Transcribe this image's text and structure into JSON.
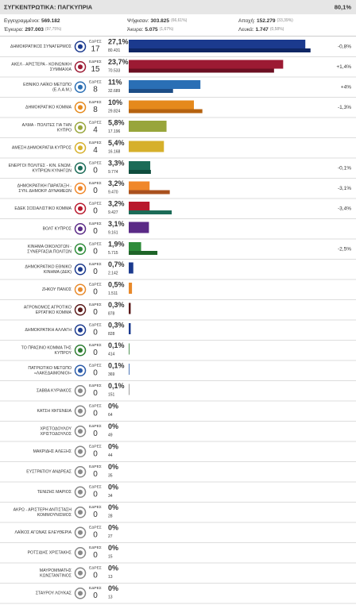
{
  "header": {
    "title": "ΣΥΓΚΕΝΤΡΩΤΙΚΑ: ΠΑΓΚΥΠΡΙΑ",
    "counted": "80,1%"
  },
  "summary": [
    {
      "label": "Εγγεγραμμένοι:",
      "value": "569.182"
    },
    {
      "label": "Ψήφισαν:",
      "value": "303.825",
      "pct": "(66,61%)"
    },
    {
      "label": "Αποχή:",
      "value": "152.279",
      "pct": "(33,39%)"
    },
    {
      "label": "Έγκυρα:",
      "value": "297.003",
      "pct": "(97,75%)"
    },
    {
      "label": "Άκυρα:",
      "value": "5.075",
      "pct": "(1,67%)"
    },
    {
      "label": "Λευκά:",
      "value": "1.747",
      "pct": "(0,58%)"
    }
  ],
  "seats_label": "ΕΔΡΕΣ",
  "rows": [
    {
      "name": [
        "ΔΗΜΟΚΡΑΤΙΚΟΣ ΣΥΝΑΓΕΡΜΟΣ"
      ],
      "seats": "17",
      "pct": 27.1,
      "pct_label": "27,1%",
      "votes": "80.431",
      "change": "-0,8%",
      "prev": 27.9,
      "color": "#1b3a8e",
      "prev_color": "#0f2664"
    },
    {
      "name": [
        "ΑΚΕΛ - ΑΡΙΣΤΕΡΑ - ΚΟΙΝΩΝΙΚΗ",
        "ΣΥΜΜΑΧΙΑ"
      ],
      "seats": "15",
      "pct": 23.7,
      "pct_label": "23,7%",
      "votes": "70.533",
      "change": "+1,4%",
      "prev": 22.3,
      "color": "#9c1a33",
      "prev_color": "#6b0f22"
    },
    {
      "name": [
        "ΕΘΝΙΚΟ ΛΑΪΚΟ ΜΕΤΩΠΟ",
        "(Ε.Λ.Α.Μ.)"
      ],
      "seats": "8",
      "pct": 11,
      "pct_label": "11%",
      "votes": "32.689",
      "change": "+4%",
      "prev": 6.8,
      "color": "#2a6fb5",
      "prev_color": "#1d4d86"
    },
    {
      "name": [
        "ΔΗΜΟΚΡΑΤΙΚΟ ΚΟΜΜΑ"
      ],
      "seats": "8",
      "pct": 10,
      "pct_label": "10%",
      "votes": "29.824",
      "change": "-1,3%",
      "prev": 11.3,
      "color": "#e5891c",
      "prev_color": "#b5620f"
    },
    {
      "name": [
        "ΑΛΜΑ - ΠΟΛΙΤΕΣ ΓΙΑ ΤΗΝ",
        "ΚΥΠΡΟ"
      ],
      "seats": "4",
      "pct": 5.8,
      "pct_label": "5,8%",
      "votes": "17.196",
      "color": "#98a53b"
    },
    {
      "name": [
        "ΑΜΕΣΗ ΔΗΜΟΚΡΑΤΙΑ ΚΥΠΡΟΣ"
      ],
      "seats": "4",
      "pct": 5.4,
      "pct_label": "5,4%",
      "votes": "16.168",
      "color": "#d6b02b"
    },
    {
      "name": [
        "ΕΝΕΡΓΟΙ ΠΟΛΙΤΕΣ - ΚΙΝ. ΕΝΩΜ.",
        "ΚΥΠΡΙΩΝ ΚΥΝΗΓΩΝ"
      ],
      "seats": "0",
      "pct": 3.3,
      "pct_label": "3,3%",
      "votes": "9.774",
      "change": "-0,1%",
      "prev": 3.4,
      "color": "#1b6b57",
      "prev_color": "#0e4c3d"
    },
    {
      "name": [
        "ΔΗΜΟΚΡΑΤΙΚΗ ΠΑΡΑΤΑΞΗ -",
        "ΣΥΝ. ΔΗΜΟΚΡ. ΔΥΝΑΜΕΩΝ"
      ],
      "seats": "0",
      "pct": 3.2,
      "pct_label": "3,2%",
      "votes": "9.470",
      "change": "-3,1%",
      "prev": 6.3,
      "color": "#f0872a",
      "prev_color": "#a9501e"
    },
    {
      "name": [
        "ΕΔΕΚ ΣΟΣΙΑΛΙΣΤΙΚΟ ΚΟΜΜΑ"
      ],
      "seats": "0",
      "pct": 3.2,
      "pct_label": "3,2%",
      "votes": "9.427",
      "change": "-3,4%",
      "prev": 6.6,
      "color": "#b8182c",
      "prev_color": "#1b6b57"
    },
    {
      "name": [
        "ΒΟΛΤ ΚΥΠΡΟΣ"
      ],
      "seats": "0",
      "pct": 3.1,
      "pct_label": "3,1%",
      "votes": "9.161",
      "color": "#5a2a86"
    },
    {
      "name": [
        "ΚΙΝΗΜΑ ΟΙΚΟΛΟΓΩΝ -",
        "ΣΥΝΕΡΓΑΣΙΑ ΠΟΛΙΤΩΝ"
      ],
      "seats": "0",
      "pct": 1.9,
      "pct_label": "1,9%",
      "votes": "5.715",
      "change": "-2,5%",
      "prev": 4.4,
      "color": "#2e8b3a",
      "prev_color": "#1e6428"
    },
    {
      "name": [
        "ΔΗΜΟΚΡΑΤΙΚΟ ΕΘΝΙΚΟ",
        "ΚΙΝΗΜΑ (ΔΕΚ)"
      ],
      "seats": "0",
      "pct": 0.7,
      "pct_label": "0,7%",
      "votes": "2.142",
      "color": "#1b3a8e"
    },
    {
      "name": [
        "ΖΗΚΟΥ ΠΑΝΟΣ"
      ],
      "seats": "0",
      "pct": 0.5,
      "pct_label": "0,5%",
      "votes": "1.511",
      "color": "#e8892a"
    },
    {
      "name": [
        "ΑΓΡΟΝΟΜΟΣ ΑΓΡΟΤΙΚΟ",
        "ΕΡΓΑΤΙΚΟ ΚΟΜΜΑ"
      ],
      "seats": "0",
      "pct": 0.3,
      "pct_label": "0,3%",
      "votes": "878",
      "color": "#5a1a1a"
    },
    {
      "name": [
        "ΔΗΜΟΚΡΑΤΙΚΗ ΑΛΛΑΓΗ"
      ],
      "seats": "0",
      "pct": 0.3,
      "pct_label": "0,3%",
      "votes": "828",
      "color": "#1b3a8e"
    },
    {
      "name": [
        "ΤΟ ΠΡΑΣΙΝΟ ΚΟΜΜΑ ΤΗΣ",
        "ΚΥΠΡΟΥ"
      ],
      "seats": "0",
      "pct": 0.1,
      "pct_label": "0,1%",
      "votes": "414",
      "color": "#2e7d32"
    },
    {
      "name": [
        "ΠΑΤΡΙΩΤΙΚΟ ΜΕΤΩΠΟ",
        "«ΛΑΚΕΔΑΙΜΟΝΙΟΙ»"
      ],
      "seats": "0",
      "pct": 0.1,
      "pct_label": "0,1%",
      "votes": "369",
      "color": "#2a5aa8"
    },
    {
      "name": [
        "ΣΑΒΒΑ ΚΥΡΙΑΚΟΣ"
      ],
      "seats": "0",
      "pct": 0.1,
      "pct_label": "0,1%",
      "votes": "151",
      "color": "#888888"
    },
    {
      "name": [
        "ΚΑΤΣΗ ΙΦΙΓΕΝΕΙΑ"
      ],
      "seats": "0",
      "pct": 0,
      "pct_label": "0%",
      "votes": "64",
      "color": "#888888"
    },
    {
      "name": [
        "ΧΡΙΣΤΟΔΟΥΛΟΥ",
        "ΧΡΙΣΤΟΔΟΥΛΟΣ"
      ],
      "seats": "0",
      "pct": 0,
      "pct_label": "0%",
      "votes": "49",
      "color": "#888888"
    },
    {
      "name": [
        "ΜΑΚΡΙΔΗΣ ΑΛΕΞΗΣ"
      ],
      "seats": "0",
      "pct": 0,
      "pct_label": "0%",
      "votes": "44",
      "color": "#888888"
    },
    {
      "name": [
        "ΕΥΣΤΡΑΤΙΟΥ ΑΝΔΡΕΑΣ"
      ],
      "seats": "0",
      "pct": 0,
      "pct_label": "0%",
      "votes": "35",
      "color": "#888888"
    },
    {
      "name": [
        "ΤΕΝΙΖΗΣ ΜΑΡΙΟΣ"
      ],
      "seats": "0",
      "pct": 0,
      "pct_label": "0%",
      "votes": "34",
      "color": "#888888"
    },
    {
      "name": [
        "ΑΚΡΩ - ΑΡΙΣΤΕΡΗ ΑΝΤΙΣΤΑΣΗ",
        "ΚΟΜΜΟΥΝΙΣΜΟΣ"
      ],
      "seats": "0",
      "pct": 0,
      "pct_label": "0%",
      "votes": "28",
      "color": "#888888"
    },
    {
      "name": [
        "ΛΑΪΚΟΣ ΑΓΩΝΑΣ ΕΛΕΥΘΕΡΙΑ"
      ],
      "seats": "0",
      "pct": 0,
      "pct_label": "0%",
      "votes": "27",
      "color": "#888888"
    },
    {
      "name": [
        "ΡΟΤΣΙΔΗΣ ΧΡΙΣΤΑΚΗΣ"
      ],
      "seats": "0",
      "pct": 0,
      "pct_label": "0%",
      "votes": "15",
      "color": "#888888"
    },
    {
      "name": [
        "ΜΑΥΡΟΜΜΑΤΗΣ",
        "ΚΩΝΣΤΑΝΤΙΝΟΣ"
      ],
      "seats": "0",
      "pct": 0,
      "pct_label": "0%",
      "votes": "13",
      "color": "#888888"
    },
    {
      "name": [
        "ΣΤΑΥΡΟΥ ΛΟΥΚΑΣ"
      ],
      "seats": "0",
      "pct": 0,
      "pct_label": "0%",
      "votes": "13",
      "color": "#888888"
    }
  ]
}
